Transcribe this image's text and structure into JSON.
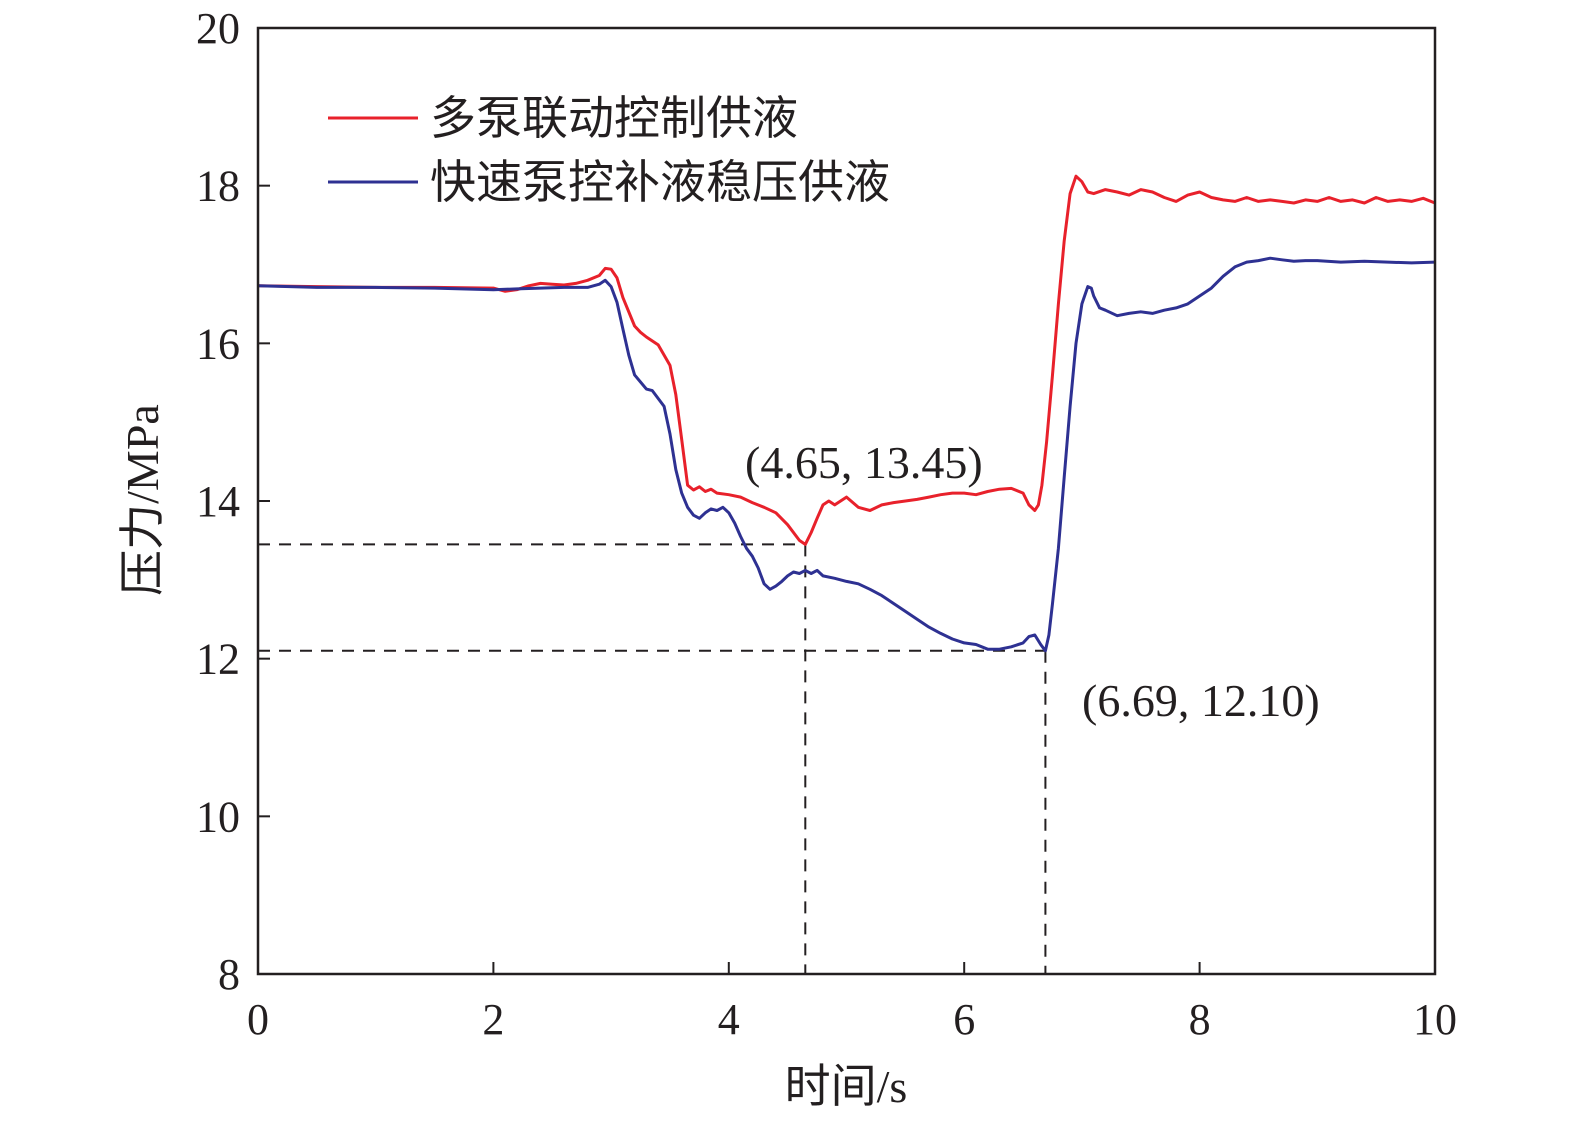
{
  "chart_data": {
    "type": "line",
    "xlabel": "时间/s",
    "ylabel": "压力/MPa",
    "xlim": [
      0,
      10
    ],
    "ylim": [
      8,
      20
    ],
    "xticks": [
      0,
      2,
      4,
      6,
      8,
      10
    ],
    "yticks": [
      8,
      10,
      12,
      14,
      16,
      18,
      20
    ],
    "legend_position": "top-left",
    "grid": false,
    "series": [
      {
        "name": "多泵联动控制供液",
        "color": "#e8212b",
        "x": [
          0,
          0.5,
          1.0,
          1.5,
          2.0,
          2.1,
          2.2,
          2.3,
          2.4,
          2.5,
          2.6,
          2.7,
          2.8,
          2.9,
          2.95,
          3.0,
          3.05,
          3.1,
          3.2,
          3.25,
          3.3,
          3.4,
          3.5,
          3.55,
          3.6,
          3.65,
          3.7,
          3.75,
          3.8,
          3.85,
          3.9,
          4.0,
          4.1,
          4.2,
          4.3,
          4.4,
          4.5,
          4.6,
          4.65,
          4.7,
          4.75,
          4.8,
          4.85,
          4.9,
          5.0,
          5.1,
          5.2,
          5.3,
          5.4,
          5.5,
          5.6,
          5.7,
          5.8,
          5.9,
          6.0,
          6.1,
          6.2,
          6.3,
          6.4,
          6.5,
          6.55,
          6.6,
          6.63,
          6.66,
          6.7,
          6.75,
          6.8,
          6.85,
          6.9,
          6.95,
          7.0,
          7.05,
          7.1,
          7.2,
          7.3,
          7.4,
          7.5,
          7.6,
          7.7,
          7.8,
          7.9,
          8.0,
          8.1,
          8.2,
          8.3,
          8.4,
          8.5,
          8.6,
          8.7,
          8.8,
          8.9,
          9.0,
          9.1,
          9.2,
          9.3,
          9.4,
          9.5,
          9.6,
          9.7,
          9.8,
          9.9,
          10.0
        ],
        "y": [
          16.73,
          16.72,
          16.71,
          16.71,
          16.7,
          16.66,
          16.68,
          16.73,
          16.76,
          16.75,
          16.74,
          16.76,
          16.8,
          16.86,
          16.95,
          16.94,
          16.83,
          16.58,
          16.22,
          16.14,
          16.08,
          15.98,
          15.72,
          15.35,
          14.78,
          14.2,
          14.14,
          14.18,
          14.12,
          14.15,
          14.1,
          14.08,
          14.05,
          13.98,
          13.92,
          13.85,
          13.7,
          13.5,
          13.45,
          13.6,
          13.78,
          13.95,
          14.0,
          13.95,
          14.05,
          13.92,
          13.88,
          13.95,
          13.98,
          14.0,
          14.02,
          14.05,
          14.08,
          14.1,
          14.1,
          14.08,
          14.12,
          14.15,
          14.16,
          14.1,
          13.95,
          13.88,
          13.95,
          14.2,
          14.75,
          15.6,
          16.5,
          17.3,
          17.9,
          18.12,
          18.05,
          17.92,
          17.9,
          17.95,
          17.92,
          17.88,
          17.95,
          17.92,
          17.85,
          17.8,
          17.88,
          17.92,
          17.85,
          17.82,
          17.8,
          17.85,
          17.8,
          17.82,
          17.8,
          17.78,
          17.82,
          17.8,
          17.85,
          17.8,
          17.82,
          17.78,
          17.85,
          17.8,
          17.82,
          17.8,
          17.84,
          17.78
        ]
      },
      {
        "name": "快速泵控补液稳压供液",
        "color": "#2e3192",
        "x": [
          0,
          0.5,
          1.0,
          1.5,
          2.0,
          2.2,
          2.4,
          2.6,
          2.8,
          2.9,
          2.95,
          3.0,
          3.05,
          3.1,
          3.15,
          3.2,
          3.3,
          3.35,
          3.4,
          3.45,
          3.5,
          3.55,
          3.6,
          3.65,
          3.7,
          3.75,
          3.8,
          3.85,
          3.9,
          3.95,
          4.0,
          4.05,
          4.1,
          4.15,
          4.2,
          4.25,
          4.3,
          4.35,
          4.4,
          4.45,
          4.5,
          4.55,
          4.6,
          4.65,
          4.7,
          4.75,
          4.8,
          4.9,
          5.0,
          5.1,
          5.2,
          5.3,
          5.4,
          5.5,
          5.6,
          5.7,
          5.8,
          5.9,
          6.0,
          6.1,
          6.2,
          6.3,
          6.4,
          6.5,
          6.55,
          6.6,
          6.65,
          6.69,
          6.72,
          6.75,
          6.8,
          6.85,
          6.9,
          6.95,
          7.0,
          7.05,
          7.08,
          7.1,
          7.15,
          7.2,
          7.3,
          7.4,
          7.5,
          7.6,
          7.7,
          7.8,
          7.9,
          8.0,
          8.1,
          8.2,
          8.3,
          8.4,
          8.5,
          8.6,
          8.7,
          8.8,
          8.9,
          9.0,
          9.2,
          9.4,
          9.6,
          9.8,
          10.0
        ],
        "y": [
          16.73,
          16.71,
          16.71,
          16.7,
          16.68,
          16.69,
          16.7,
          16.71,
          16.71,
          16.75,
          16.8,
          16.72,
          16.52,
          16.18,
          15.85,
          15.6,
          15.42,
          15.4,
          15.3,
          15.2,
          14.85,
          14.4,
          14.1,
          13.92,
          13.82,
          13.78,
          13.85,
          13.9,
          13.88,
          13.92,
          13.85,
          13.72,
          13.55,
          13.4,
          13.3,
          13.15,
          12.95,
          12.88,
          12.92,
          12.98,
          13.05,
          13.1,
          13.08,
          13.12,
          13.08,
          13.12,
          13.05,
          13.02,
          12.98,
          12.95,
          12.88,
          12.8,
          12.7,
          12.6,
          12.5,
          12.4,
          12.32,
          12.25,
          12.2,
          12.18,
          12.12,
          12.12,
          12.15,
          12.2,
          12.28,
          12.3,
          12.18,
          12.1,
          12.3,
          12.7,
          13.4,
          14.3,
          15.2,
          16.0,
          16.5,
          16.72,
          16.7,
          16.6,
          16.45,
          16.42,
          16.35,
          16.38,
          16.4,
          16.38,
          16.42,
          16.45,
          16.5,
          16.6,
          16.7,
          16.85,
          16.97,
          17.03,
          17.05,
          17.08,
          17.06,
          17.04,
          17.05,
          17.05,
          17.03,
          17.04,
          17.03,
          17.02,
          17.03
        ]
      }
    ],
    "annotations": [
      {
        "text": "(4.65, 13.45)",
        "x": 4.65,
        "y": 13.45
      },
      {
        "text": "(6.69, 12.10)",
        "x": 6.69,
        "y": 12.1
      }
    ]
  }
}
